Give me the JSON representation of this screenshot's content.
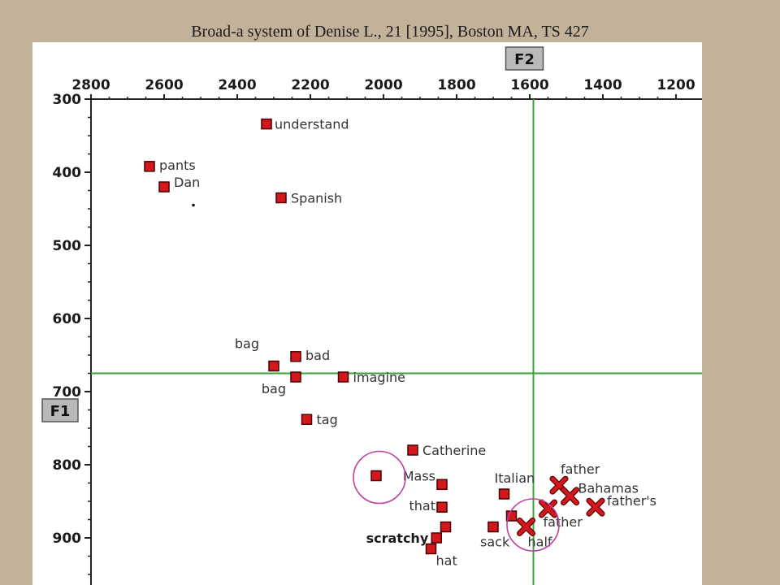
{
  "title": "Broad-a system of Denise L., 21 [1995], Boston MA, TS 427",
  "chart_data": {
    "type": "scatter",
    "title": "Broad-a system of Denise L., 21 [1995], Boston MA, TS 427",
    "xlabel": "F2",
    "ylabel": "F1",
    "x_reversed": true,
    "y_reversed": true,
    "x_axis_position": "top",
    "xlim": [
      2800,
      1200
    ],
    "ylim": [
      300,
      900
    ],
    "x_ticks": [
      2800,
      2600,
      2400,
      2200,
      2000,
      1800,
      1600,
      1400,
      1200
    ],
    "y_ticks": [
      300,
      400,
      500,
      600,
      700,
      800,
      900
    ],
    "reference_lines": {
      "F2": 1590,
      "F1": 675
    },
    "marker_colors": {
      "square": "#d4171b",
      "cross": "#d4171b",
      "circle": "#c040a0",
      "grid": "#3aa33a"
    },
    "points": [
      {
        "label": "understand",
        "F2": 2320,
        "F1": 334,
        "marker": "square"
      },
      {
        "label": "pants",
        "F2": 2640,
        "F1": 392,
        "marker": "square"
      },
      {
        "label": "Dan",
        "F2": 2600,
        "F1": 420,
        "marker": "square"
      },
      {
        "label": "Spanish",
        "F2": 2280,
        "F1": 435,
        "marker": "square"
      },
      {
        "label": "bad",
        "F2": 2240,
        "F1": 652,
        "marker": "square"
      },
      {
        "label": "bag",
        "F2": 2300,
        "F1": 665,
        "marker": "square"
      },
      {
        "label": "bag",
        "F2": 2240,
        "F1": 680,
        "marker": "square"
      },
      {
        "label": "imagine",
        "F2": 2110,
        "F1": 680,
        "marker": "square"
      },
      {
        "label": "tag",
        "F2": 2210,
        "F1": 738,
        "marker": "square"
      },
      {
        "label": "Catherine",
        "F2": 1920,
        "F1": 780,
        "marker": "square"
      },
      {
        "label": "",
        "F2": 2020,
        "F1": 815,
        "marker": "square"
      },
      {
        "label": "Mass",
        "F2": 1840,
        "F1": 827,
        "marker": "square"
      },
      {
        "label": "Italian",
        "F2": 1670,
        "F1": 840,
        "marker": "square"
      },
      {
        "label": "that",
        "F2": 1840,
        "F1": 858,
        "marker": "square"
      },
      {
        "label": "",
        "F2": 1650,
        "F1": 870,
        "marker": "square"
      },
      {
        "label": "sack",
        "F2": 1700,
        "F1": 885,
        "marker": "square"
      },
      {
        "label": "",
        "F2": 1830,
        "F1": 885,
        "marker": "square"
      },
      {
        "label": "scratchy",
        "F2": 1855,
        "F1": 900,
        "marker": "square",
        "bold": true
      },
      {
        "label": "hat",
        "F2": 1870,
        "F1": 915,
        "marker": "square"
      },
      {
        "label": "father",
        "F2": 1520,
        "F1": 828,
        "marker": "cross"
      },
      {
        "label": "Bahamas",
        "F2": 1490,
        "F1": 843,
        "marker": "cross"
      },
      {
        "label": "father's",
        "F2": 1420,
        "F1": 858,
        "marker": "cross"
      },
      {
        "label": "father",
        "F2": 1550,
        "F1": 860,
        "marker": "cross"
      },
      {
        "label": "half",
        "F2": 1610,
        "F1": 885,
        "marker": "cross"
      }
    ],
    "circled_points": [
      {
        "F2": 2020,
        "F1": 815
      },
      {
        "F2": 1600,
        "F1": 880
      }
    ]
  }
}
